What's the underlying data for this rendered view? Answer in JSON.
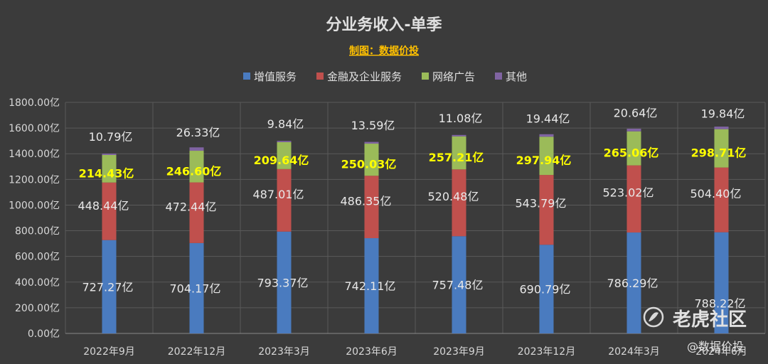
{
  "chart_data": {
    "type": "bar",
    "stacked": true,
    "title": "分业务收入-单季",
    "subtitle": "制图：数据价投",
    "categories": [
      "2022年9月",
      "2022年12月",
      "2023年3月",
      "2023年6月",
      "2023年9月",
      "2023年12月",
      "2024年3月",
      "2024年6月"
    ],
    "series": [
      {
        "name": "增值服务",
        "color": "#4a7bbf",
        "values": [
          727.27,
          704.17,
          793.37,
          742.11,
          757.48,
          690.79,
          786.29,
          788.22
        ],
        "labels": [
          "727.27亿",
          "704.17亿",
          "793.37亿",
          "742.11亿",
          "757.48亿",
          "690.79亿",
          "786.29亿",
          "788.22亿"
        ]
      },
      {
        "name": "金融及企业服务",
        "color": "#c0504d",
        "values": [
          448.44,
          472.44,
          487.01,
          486.35,
          520.48,
          543.79,
          523.02,
          504.4
        ],
        "labels": [
          "448.44亿",
          "472.44亿",
          "487.01亿",
          "486.35亿",
          "520.48亿",
          "543.79亿",
          "523.02亿",
          "504.40亿"
        ]
      },
      {
        "name": "网络广告",
        "color": "#9bbb59",
        "values": [
          214.43,
          246.6,
          209.64,
          250.03,
          257.21,
          297.94,
          265.06,
          298.71
        ],
        "labels": [
          "214.43亿",
          "246.60亿",
          "209.64亿",
          "250.03亿",
          "257.21亿",
          "297.94亿",
          "265.06亿",
          "298.71亿"
        ]
      },
      {
        "name": "其他",
        "color": "#8064a2",
        "values": [
          10.79,
          26.33,
          9.84,
          13.59,
          11.08,
          19.44,
          20.64,
          19.84
        ],
        "labels": [
          "10.79亿",
          "26.33亿",
          "9.84亿",
          "13.59亿",
          "11.08亿",
          "19.44亿",
          "20.64亿",
          "19.84亿"
        ]
      }
    ],
    "ylim": [
      0,
      1800
    ],
    "yticks": [
      "0.00亿",
      "200.00亿",
      "400.00亿",
      "600.00亿",
      "800.00亿",
      "1000.00亿",
      "1200.00亿",
      "1400.00亿",
      "1600.00亿",
      "1800.00亿"
    ],
    "grid": true,
    "legend_position": "top"
  },
  "watermark": {
    "brand": "老虎社区",
    "author": "@数据价投"
  },
  "colors": {
    "background": "#3b3b3b",
    "title": "#e0e0e0",
    "subtitle": "#ffc000",
    "label_light": "#e8e8e8",
    "label_highlight": "#ffff00"
  }
}
